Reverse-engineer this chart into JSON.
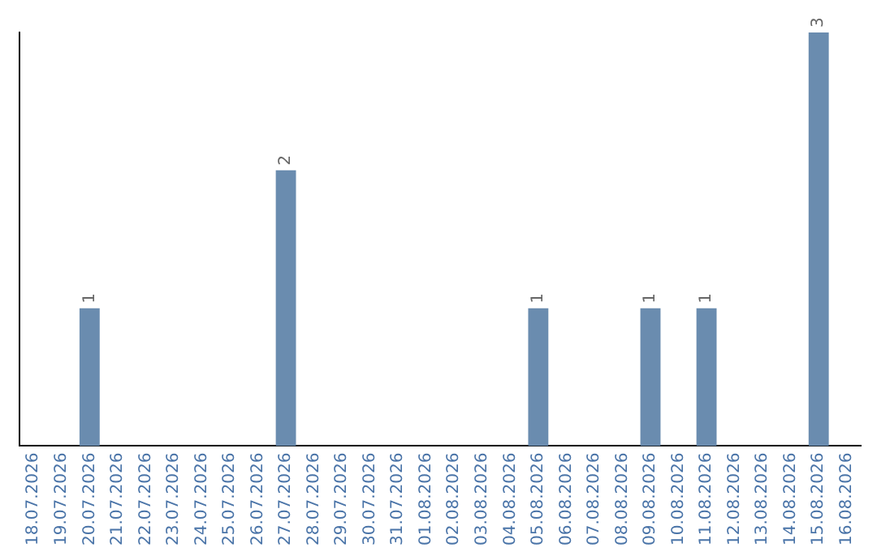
{
  "chart_data": {
    "type": "bar",
    "categories": [
      "18.07.2026",
      "19.07.2026",
      "20.07.2026",
      "21.07.2026",
      "22.07.2026",
      "23.07.2026",
      "24.07.2026",
      "25.07.2026",
      "26.07.2026",
      "27.07.2026",
      "28.07.2026",
      "29.07.2026",
      "30.07.2026",
      "31.07.2026",
      "01.08.2026",
      "02.08.2026",
      "03.08.2026",
      "04.08.2026",
      "05.08.2026",
      "06.08.2026",
      "07.08.2026",
      "08.08.2026",
      "09.08.2026",
      "10.08.2026",
      "11.08.2026",
      "12.08.2026",
      "13.08.2026",
      "14.08.2026",
      "15.08.2026",
      "16.08.2026"
    ],
    "values": [
      0,
      0,
      1,
      0,
      0,
      0,
      0,
      0,
      0,
      2,
      0,
      0,
      0,
      0,
      0,
      0,
      0,
      0,
      1,
      0,
      0,
      0,
      1,
      0,
      1,
      0,
      0,
      0,
      3,
      0
    ],
    "value_labels": [
      null,
      null,
      "1",
      null,
      null,
      null,
      null,
      null,
      null,
      "2",
      null,
      null,
      null,
      null,
      null,
      null,
      null,
      null,
      "1",
      null,
      null,
      null,
      "1",
      null,
      "1",
      null,
      null,
      null,
      "3",
      null
    ],
    "color": "#6a8caf",
    "grid": false,
    "legend": false
  }
}
